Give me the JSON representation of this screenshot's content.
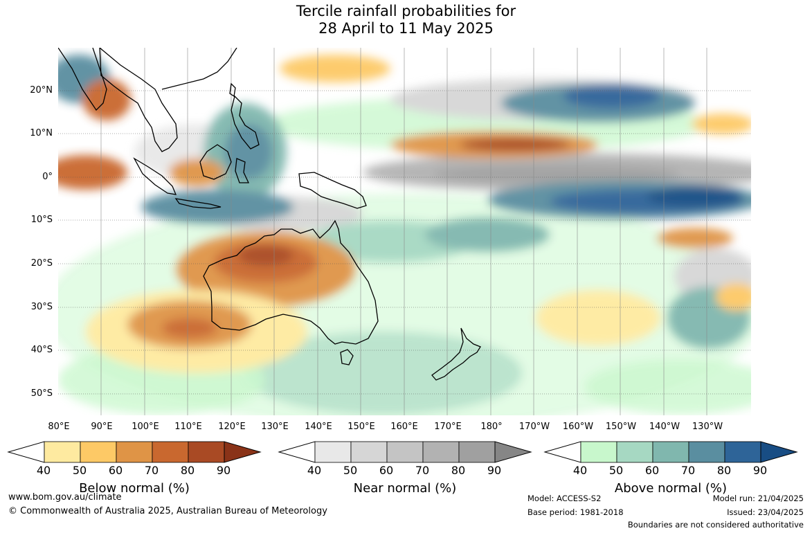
{
  "title": {
    "line1": "Tercile rainfall probabilities for",
    "line2": "28 April to 11 May 2025"
  },
  "map": {
    "lat_labels": [
      "20°N",
      "10°N",
      "0°",
      "10°S",
      "20°S",
      "30°S",
      "40°S",
      "50°S"
    ],
    "lon_labels": [
      "80°E",
      "90°E",
      "100°E",
      "110°E",
      "120°E",
      "130°E",
      "140°E",
      "150°E",
      "160°E",
      "170°E",
      "180°",
      "170°W",
      "160°W",
      "150°W",
      "140°W",
      "130°W"
    ]
  },
  "colorbars": [
    {
      "id": "below",
      "label": "Below normal (%)",
      "ticks": [
        "40",
        "50",
        "60",
        "70",
        "80",
        "90"
      ],
      "colors": [
        "#ffffff",
        "#feeaa0",
        "#fdc966",
        "#df9446",
        "#c9682f",
        "#a94a24",
        "#8a3318"
      ]
    },
    {
      "id": "near",
      "label": "Near normal (%)",
      "ticks": [
        "40",
        "50",
        "60",
        "70",
        "80",
        "90"
      ],
      "colors": [
        "#ffffff",
        "#e8e8e8",
        "#d6d6d6",
        "#c4c4c4",
        "#b2b2b2",
        "#a0a0a0",
        "#868686"
      ]
    },
    {
      "id": "above",
      "label": "Above normal (%)",
      "ticks": [
        "40",
        "50",
        "60",
        "70",
        "80",
        "90"
      ],
      "colors": [
        "#ffffff",
        "#c8f7cc",
        "#a6d8c2",
        "#80b7ae",
        "#5a8ea0",
        "#2e6498",
        "#184d84"
      ]
    }
  ],
  "footer": {
    "website": "www.bom.gov.au/climate",
    "copyright": "© Commonwealth of Australia 2025, Australian Bureau of Meteorology",
    "model": "Model: ACCESS-S2",
    "base_period": "Base period: 1981-2018",
    "model_run": "Model run: 21/04/2025",
    "issued": "Issued: 23/04/2025",
    "disclaimer": "Boundaries are not considered authoritative"
  }
}
